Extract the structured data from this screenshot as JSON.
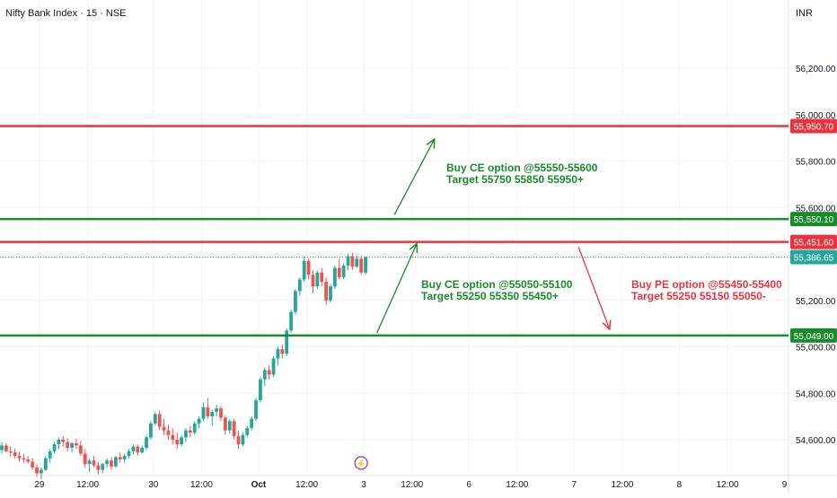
{
  "header": {
    "title": "Nifty Bank Index · 15 · NSE",
    "currency": "INR"
  },
  "colors": {
    "up": "#26a69a",
    "down": "#ef5350",
    "resistance": "#e8343f",
    "support": "#1b8a2a",
    "annotation_green": "#1b8a2a",
    "annotation_red": "#e8343f",
    "last_price": "#26a69a",
    "grid": "#f0f3fa",
    "axis_text": "#131722"
  },
  "chart_data": {
    "type": "candlestick",
    "y_ticks": [
      "56,200.00",
      "56,000.00",
      "55,800.00",
      "55,600.00",
      "55,200.00",
      "55,000.00",
      "54,800.00",
      "54,600.00"
    ],
    "y_tick_values": [
      56200,
      56000,
      55800,
      55600,
      55200,
      55000,
      54800,
      54600
    ],
    "x_ticks": [
      {
        "label": "29",
        "bar": 9
      },
      {
        "label": "12:00",
        "bar": 20
      },
      {
        "label": "30",
        "bar": 35
      },
      {
        "label": "12:00",
        "bar": 46
      },
      {
        "label": "Oct",
        "bar": 59
      },
      {
        "label": "12:00",
        "bar": 70
      },
      {
        "label": "3",
        "bar": 83
      },
      {
        "label": "12:00",
        "bar": 94
      },
      {
        "label": "6",
        "bar": 107
      },
      {
        "label": "12:00",
        "bar": 118
      },
      {
        "label": "7",
        "bar": 131
      },
      {
        "label": "12:00",
        "bar": 142
      },
      {
        "label": "8",
        "bar": 155
      },
      {
        "label": "12:00",
        "bar": 166
      },
      {
        "label": "9",
        "bar": 179
      }
    ],
    "levels": [
      {
        "value": 55950.7,
        "label": "55,950.70",
        "kind": "resistance"
      },
      {
        "value": 55550.1,
        "label": "55,550.10",
        "kind": "support"
      },
      {
        "value": 55451.6,
        "label": "55,451.60",
        "kind": "resistance"
      },
      {
        "value": 55049.0,
        "label": "55,049.00",
        "kind": "support"
      }
    ],
    "last_price": {
      "value": 55386.65,
      "label": "55,386.65"
    },
    "annotations": [
      {
        "lines": [
          "Buy CE option @55550-55600",
          "Target 55750 55850 55950+"
        ],
        "color": "green"
      },
      {
        "lines": [
          "Buy CE option @55050-55100",
          "Target 55250 55350 55450+"
        ],
        "color": "green"
      },
      {
        "lines": [
          "Buy PE option @55450-55400",
          "Target 55250 55150 55050-"
        ],
        "color": "red"
      }
    ],
    "arrows": [
      {
        "from": [
          90,
          55570
        ],
        "to": [
          99,
          55890
        ],
        "color": "green"
      },
      {
        "from": [
          86,
          55060
        ],
        "to": [
          95,
          55440
        ],
        "color": "green"
      },
      {
        "from": [
          132,
          55430
        ],
        "to": [
          139,
          55080
        ],
        "color": "red"
      }
    ],
    "event_marker": {
      "bar": 82,
      "glyph": "⚡"
    },
    "candles": [
      [
        54555,
        54590,
        54540,
        54575
      ],
      [
        54575,
        54585,
        54545,
        54550
      ],
      [
        54550,
        54570,
        54525,
        54545
      ],
      [
        54545,
        54562,
        54520,
        54530
      ],
      [
        54530,
        54548,
        54505,
        54520
      ],
      [
        54520,
        54540,
        54500,
        54515
      ],
      [
        54515,
        54530,
        54498,
        54505
      ],
      [
        54505,
        54520,
        54470,
        54480
      ],
      [
        54480,
        54495,
        54440,
        54455
      ],
      [
        54455,
        54480,
        54430,
        54470
      ],
      [
        54470,
        54530,
        54465,
        54520
      ],
      [
        54520,
        54560,
        54500,
        54550
      ],
      [
        54550,
        54590,
        54540,
        54580
      ],
      [
        54580,
        54610,
        54560,
        54600
      ],
      [
        54600,
        54615,
        54570,
        54590
      ],
      [
        54590,
        54605,
        54550,
        54565
      ],
      [
        54565,
        54590,
        54545,
        54585
      ],
      [
        54585,
        54605,
        54560,
        54575
      ],
      [
        54575,
        54595,
        54530,
        54540
      ],
      [
        54540,
        54560,
        54480,
        54495
      ],
      [
        54495,
        54520,
        54460,
        54510
      ],
      [
        54510,
        54530,
        54480,
        54490
      ],
      [
        54490,
        54505,
        54450,
        54470
      ],
      [
        54470,
        54500,
        54455,
        54495
      ],
      [
        54495,
        54520,
        54480,
        54510
      ],
      [
        54510,
        54525,
        54470,
        54485
      ],
      [
        54485,
        54530,
        54480,
        54525
      ],
      [
        54525,
        54545,
        54500,
        54515
      ],
      [
        54515,
        54540,
        54500,
        54530
      ],
      [
        54530,
        54560,
        54520,
        54550
      ],
      [
        54550,
        54580,
        54535,
        54570
      ],
      [
        54570,
        54580,
        54530,
        54545
      ],
      [
        54545,
        54575,
        54540,
        54565
      ],
      [
        54565,
        54620,
        54555,
        54610
      ],
      [
        54610,
        54680,
        54600,
        54670
      ],
      [
        54670,
        54720,
        54660,
        54710
      ],
      [
        54710,
        54725,
        54640,
        54655
      ],
      [
        54655,
        54690,
        54620,
        54640
      ],
      [
        54640,
        54665,
        54600,
        54620
      ],
      [
        54620,
        54650,
        54580,
        54600
      ],
      [
        54600,
        54630,
        54560,
        54580
      ],
      [
        54580,
        54620,
        54570,
        54610
      ],
      [
        54610,
        54650,
        54590,
        54640
      ],
      [
        54640,
        54660,
        54610,
        54630
      ],
      [
        54630,
        54680,
        54620,
        54670
      ],
      [
        54670,
        54700,
        54650,
        54690
      ],
      [
        54690,
        54760,
        54680,
        54740
      ],
      [
        54740,
        54780,
        54690,
        54700
      ],
      [
        54700,
        54730,
        54660,
        54720
      ],
      [
        54720,
        54750,
        54700,
        54735
      ],
      [
        54735,
        54745,
        54680,
        54695
      ],
      [
        54695,
        54705,
        54620,
        54640
      ],
      [
        54640,
        54690,
        54625,
        54680
      ],
      [
        54680,
        54690,
        54600,
        54615
      ],
      [
        54615,
        54640,
        54560,
        54580
      ],
      [
        54580,
        54630,
        54570,
        54620
      ],
      [
        54620,
        54660,
        54610,
        54650
      ],
      [
        54650,
        54700,
        54640,
        54690
      ],
      [
        54690,
        54780,
        54680,
        54770
      ],
      [
        54770,
        54870,
        54760,
        54860
      ],
      [
        54860,
        54910,
        54830,
        54900
      ],
      [
        54900,
        54920,
        54860,
        54880
      ],
      [
        54880,
        54960,
        54870,
        54950
      ],
      [
        54950,
        55000,
        54920,
        54990
      ],
      [
        54990,
        55010,
        54950,
        54970
      ],
      [
        54970,
        55080,
        54960,
        55070
      ],
      [
        55070,
        55160,
        55060,
        55150
      ],
      [
        55150,
        55250,
        55140,
        55240
      ],
      [
        55240,
        55300,
        55220,
        55290
      ],
      [
        55290,
        55390,
        55280,
        55370
      ],
      [
        55370,
        55380,
        55290,
        55310
      ],
      [
        55310,
        55330,
        55230,
        55260
      ],
      [
        55260,
        55330,
        55250,
        55320
      ],
      [
        55320,
        55340,
        55260,
        55280
      ],
      [
        55280,
        55300,
        55180,
        55200
      ],
      [
        55200,
        55270,
        55190,
        55260
      ],
      [
        55260,
        55350,
        55250,
        55340
      ],
      [
        55340,
        55380,
        55290,
        55300
      ],
      [
        55300,
        55360,
        55290,
        55350
      ],
      [
        55350,
        55400,
        55330,
        55390
      ],
      [
        55390,
        55405,
        55330,
        55345
      ],
      [
        55345,
        55395,
        55340,
        55380
      ],
      [
        55380,
        55395,
        55310,
        55320
      ],
      [
        55320,
        55390,
        55310,
        55386.65
      ]
    ]
  }
}
